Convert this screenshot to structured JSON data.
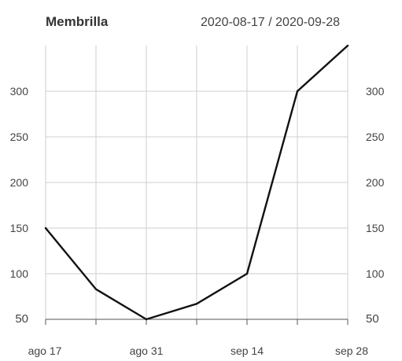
{
  "chart_data": {
    "type": "line",
    "title": "Membrilla",
    "date_range": "2020-08-17 / 2020-09-28",
    "x": [
      "2020-08-17",
      "2020-08-24",
      "2020-08-31",
      "2020-09-07",
      "2020-09-14",
      "2020-09-21",
      "2020-09-28"
    ],
    "xtick_values": [
      "2020-08-17",
      "2020-08-24",
      "2020-08-31",
      "2020-09-07",
      "2020-09-14",
      "2020-09-21",
      "2020-09-28"
    ],
    "xtick_labels": [
      "ago 17",
      "",
      "ago 31",
      "",
      "sep 14",
      "",
      "sep 28"
    ],
    "series": [
      {
        "values": [
          150,
          83,
          50,
          67,
          100,
          300,
          350
        ],
        "color": "#111111"
      }
    ],
    "ylim": [
      50,
      350
    ],
    "yticks": [
      50,
      100,
      150,
      200,
      250,
      300
    ],
    "ytick_labels": [
      "50",
      "100",
      "150",
      "200",
      "250",
      "300"
    ],
    "grid": true,
    "y_axis_sides": [
      "left",
      "right"
    ]
  }
}
